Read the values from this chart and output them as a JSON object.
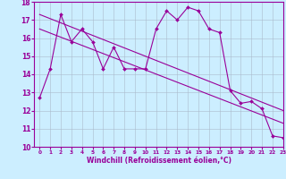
{
  "xlabel": "Windchill (Refroidissement éolien,°C)",
  "x_values": [
    0,
    1,
    2,
    3,
    4,
    5,
    6,
    7,
    8,
    9,
    10,
    11,
    12,
    13,
    14,
    15,
    16,
    17,
    18,
    19,
    20,
    21,
    22,
    23
  ],
  "line1_y": [
    12.7,
    14.3,
    17.3,
    15.8,
    16.5,
    15.8,
    14.3,
    15.5,
    14.3,
    14.3,
    14.3,
    16.5,
    17.5,
    17.0,
    17.7,
    17.5,
    16.5,
    16.3,
    13.1,
    12.4,
    12.5,
    12.1,
    10.6,
    10.5
  ],
  "trend1_x": [
    0,
    23
  ],
  "trend1_y": [
    17.3,
    12.0
  ],
  "trend2_x": [
    0,
    23
  ],
  "trend2_y": [
    16.5,
    11.3
  ],
  "ylim": [
    10,
    18
  ],
  "xlim": [
    -0.5,
    23
  ],
  "yticks": [
    10,
    11,
    12,
    13,
    14,
    15,
    16,
    17,
    18
  ],
  "xticks": [
    0,
    1,
    2,
    3,
    4,
    5,
    6,
    7,
    8,
    9,
    10,
    11,
    12,
    13,
    14,
    15,
    16,
    17,
    18,
    19,
    20,
    21,
    22,
    23
  ],
  "line_color": "#990099",
  "bg_color": "#cceeff",
  "grid_color": "#aabbcc"
}
